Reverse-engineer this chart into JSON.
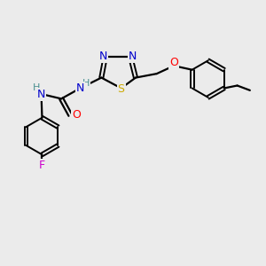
{
  "background_color": "#ebebeb",
  "bond_color": "#000000",
  "atom_colors": {
    "N": "#0000cc",
    "S": "#ccaa00",
    "O": "#ff0000",
    "F": "#cc00cc",
    "H": "#4a9090",
    "C": "#000000"
  },
  "figsize": [
    3.0,
    3.0
  ],
  "dpi": 100
}
